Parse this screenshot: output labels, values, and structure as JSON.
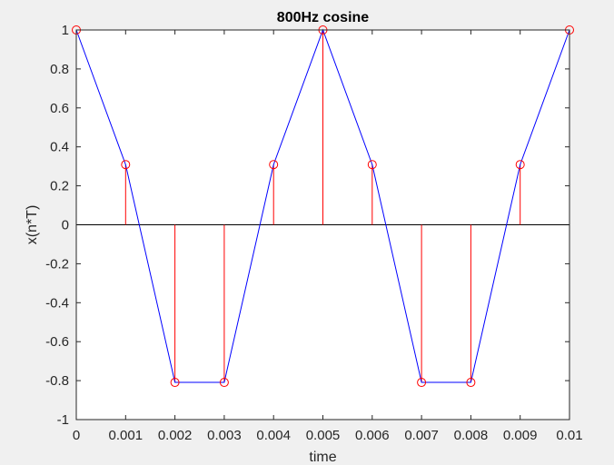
{
  "window": {
    "background": "#f0f0f0"
  },
  "chart_data": {
    "type": "line",
    "title": "800Hz cosine",
    "xlabel": "time",
    "ylabel": "x(n*T)",
    "xlim": [
      0,
      0.01
    ],
    "ylim": [
      -1,
      1
    ],
    "grid": false,
    "xticks": [
      "0",
      "0.001",
      "0.002",
      "0.003",
      "0.004",
      "0.005",
      "0.006",
      "0.007",
      "0.008",
      "0.009",
      "0.01"
    ],
    "yticks": [
      "-1",
      "-0.8",
      "-0.6",
      "-0.4",
      "-0.2",
      "0",
      "0.2",
      "0.4",
      "0.6",
      "0.8",
      "1"
    ],
    "x": [
      0,
      0.001,
      0.002,
      0.003,
      0.004,
      0.005,
      0.006,
      0.007,
      0.008,
      0.009,
      0.01
    ],
    "series": [
      {
        "style": "line",
        "color": "#0000ff",
        "values": [
          1,
          0.309,
          -0.809,
          -0.809,
          0.309,
          1,
          0.309,
          -0.809,
          -0.809,
          0.309,
          1
        ]
      },
      {
        "style": "stem",
        "color": "#ff0000",
        "marker": "circle",
        "values": [
          1,
          0.309,
          -0.809,
          -0.809,
          0.309,
          1,
          0.309,
          -0.809,
          -0.809,
          0.309,
          1
        ]
      }
    ]
  }
}
